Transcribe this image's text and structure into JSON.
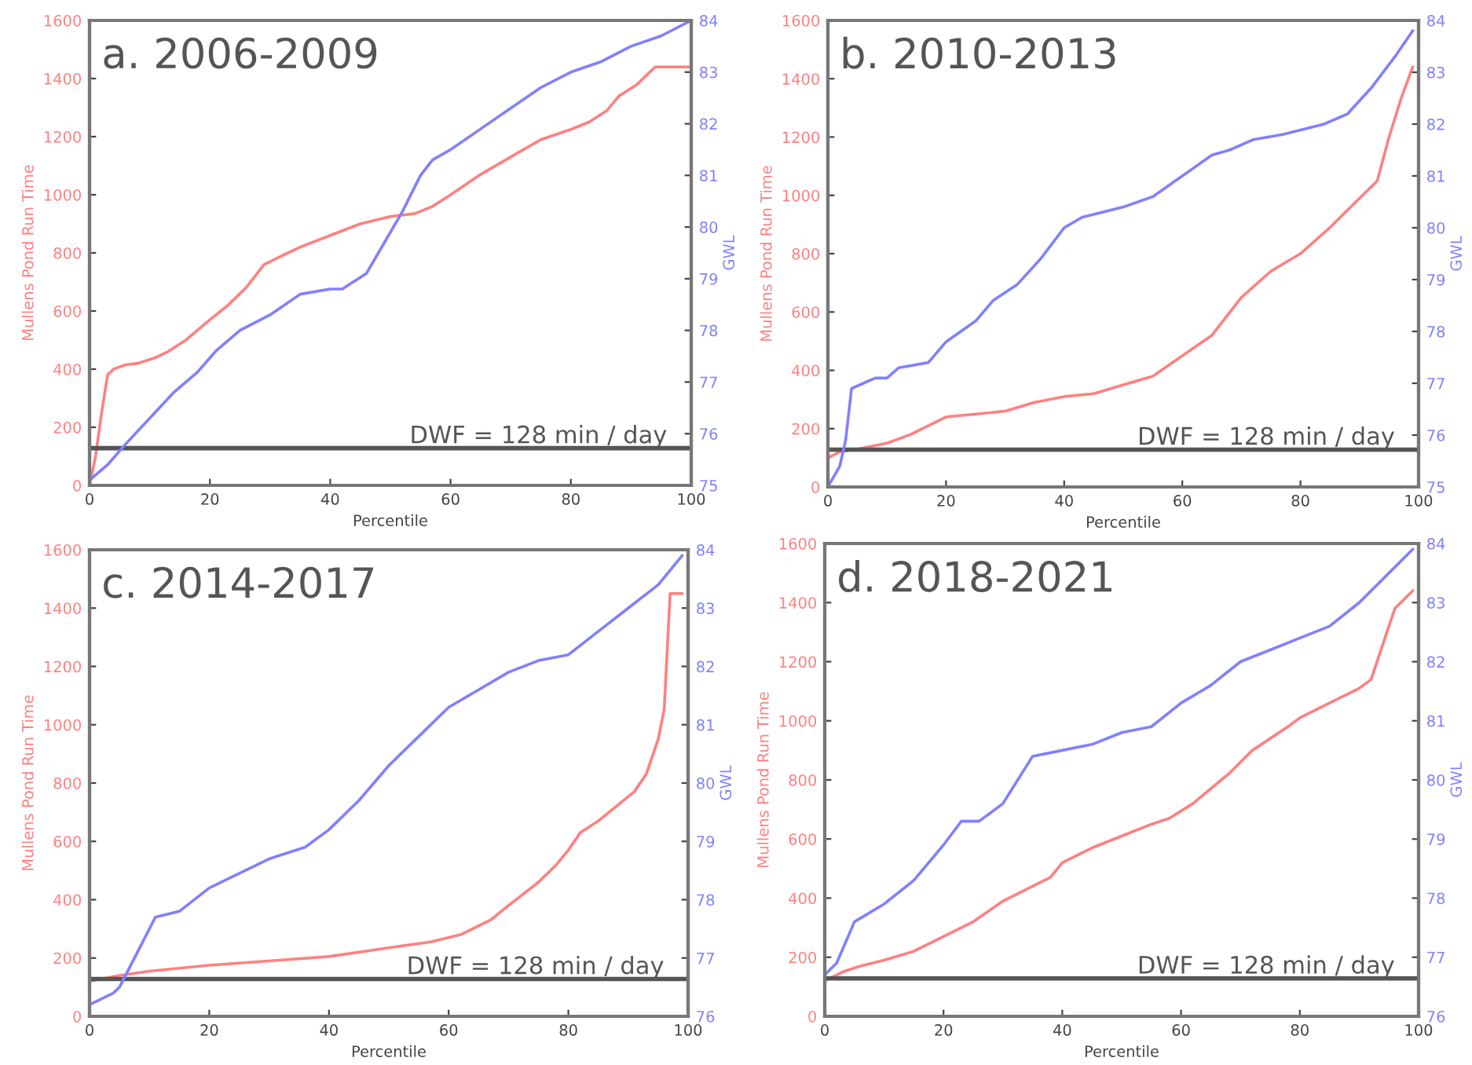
{
  "chart_data": [
    {
      "type": "line",
      "title": "a. 2006-2009",
      "xlabel": "Percentile",
      "ylabel": "Mullens Pond Run Time",
      "y2label": "GWL",
      "xlim": [
        0,
        100
      ],
      "xticks": [
        0,
        20,
        40,
        60,
        80,
        100
      ],
      "ylim": [
        0,
        1600
      ],
      "yticks": [
        0,
        200,
        400,
        600,
        800,
        1000,
        1200,
        1400,
        1600
      ],
      "y2lim": [
        75,
        84
      ],
      "y2ticks": [
        75,
        76,
        77,
        78,
        79,
        80,
        81,
        82,
        83,
        84
      ],
      "grid": false,
      "legend": false,
      "ref_lines": [
        {
          "axis": "y",
          "value": 128,
          "label": "DWF = 128 min / day",
          "color": "#555555"
        }
      ],
      "series": [
        {
          "color": "#ff8080",
          "x": [
            0,
            1,
            2,
            3,
            4,
            6,
            8,
            11,
            13,
            16,
            20,
            23,
            26,
            29,
            32,
            35,
            40,
            45,
            50,
            54,
            57,
            60,
            65,
            70,
            75,
            80,
            83,
            86,
            88,
            91,
            94,
            100
          ],
          "values": [
            0,
            100,
            250,
            380,
            400,
            415,
            420,
            440,
            460,
            500,
            570,
            620,
            680,
            760,
            790,
            820,
            860,
            900,
            925,
            935,
            960,
            1000,
            1070,
            1130,
            1190,
            1225,
            1250,
            1290,
            1340,
            1380,
            1440,
            1440
          ]
        },
        {
          "color": "#8080ff",
          "axis": "y2",
          "x": [
            0,
            3,
            6,
            10,
            14,
            18,
            21,
            25,
            30,
            35,
            40,
            42,
            46,
            48,
            52,
            55,
            57,
            60,
            65,
            70,
            75,
            80,
            85,
            90,
            95,
            100
          ],
          "values": [
            75.1,
            75.4,
            75.8,
            76.3,
            76.8,
            77.2,
            77.6,
            78.0,
            78.3,
            78.7,
            78.8,
            78.8,
            79.1,
            79.5,
            80.3,
            81.0,
            81.3,
            81.5,
            81.9,
            82.3,
            82.7,
            83.0,
            83.2,
            83.5,
            83.7,
            84.0
          ]
        }
      ]
    },
    {
      "type": "line",
      "title": "b. 2010-2013",
      "xlabel": "Percentile",
      "ylabel": "Mullens Pond Run Time",
      "y2label": "GWL",
      "xlim": [
        0,
        100
      ],
      "xticks": [
        0,
        20,
        40,
        60,
        80,
        100
      ],
      "ylim": [
        0,
        1600
      ],
      "yticks": [
        0,
        200,
        400,
        600,
        800,
        1000,
        1200,
        1400,
        1600
      ],
      "y2lim": [
        75,
        84
      ],
      "y2ticks": [
        75,
        76,
        77,
        78,
        79,
        80,
        81,
        82,
        83,
        84
      ],
      "grid": false,
      "legend": false,
      "ref_lines": [
        {
          "axis": "y",
          "value": 128,
          "label": "DWF = 128 min / day",
          "color": "#555555"
        }
      ],
      "series": [
        {
          "color": "#ff8080",
          "x": [
            0,
            2,
            5,
            10,
            14,
            18,
            20,
            25,
            30,
            35,
            40,
            45,
            50,
            55,
            60,
            65,
            70,
            75,
            80,
            85,
            90,
            93,
            95,
            97,
            99
          ],
          "values": [
            100,
            120,
            130,
            150,
            180,
            220,
            240,
            250,
            260,
            290,
            310,
            320,
            350,
            380,
            450,
            520,
            650,
            740,
            800,
            890,
            990,
            1050,
            1200,
            1330,
            1440
          ]
        },
        {
          "color": "#8080ff",
          "axis": "y2",
          "x": [
            0,
            2,
            3,
            4,
            6,
            8,
            10,
            12,
            17,
            20,
            25,
            28,
            32,
            36,
            40,
            43,
            50,
            55,
            60,
            65,
            68,
            72,
            77,
            84,
            88,
            92,
            96,
            99
          ],
          "values": [
            75.0,
            75.4,
            75.9,
            76.9,
            77.0,
            77.1,
            77.1,
            77.3,
            77.4,
            77.8,
            78.2,
            78.6,
            78.9,
            79.4,
            80.0,
            80.2,
            80.4,
            80.6,
            81.0,
            81.4,
            81.5,
            81.7,
            81.8,
            82.0,
            82.2,
            82.7,
            83.3,
            83.8
          ]
        }
      ]
    },
    {
      "type": "line",
      "title": "c. 2014-2017",
      "xlabel": "Percentile",
      "ylabel": "Mullens Pond Run Time",
      "y2label": "GWL",
      "xlim": [
        0,
        100
      ],
      "xticks": [
        0,
        20,
        40,
        60,
        80,
        100
      ],
      "ylim": [
        0,
        1600
      ],
      "yticks": [
        0,
        200,
        400,
        600,
        800,
        1000,
        1200,
        1400,
        1600
      ],
      "y2lim": [
        76,
        84
      ],
      "y2ticks": [
        76,
        77,
        78,
        79,
        80,
        81,
        82,
        83,
        84
      ],
      "grid": false,
      "legend": false,
      "ref_lines": [
        {
          "axis": "y",
          "value": 128,
          "label": "DWF = 128 min / day",
          "color": "#555555"
        }
      ],
      "series": [
        {
          "color": "#ff8080",
          "x": [
            0,
            5,
            10,
            20,
            30,
            40,
            50,
            57,
            62,
            67,
            70,
            75,
            78,
            80,
            82,
            85,
            88,
            91,
            93,
            95,
            96,
            97,
            99
          ],
          "values": [
            120,
            140,
            155,
            175,
            190,
            205,
            235,
            255,
            280,
            330,
            380,
            460,
            520,
            570,
            630,
            670,
            720,
            770,
            830,
            950,
            1050,
            1450,
            1450
          ]
        },
        {
          "color": "#8080ff",
          "axis": "y2",
          "x": [
            0,
            4,
            5,
            8,
            11,
            15,
            20,
            22,
            30,
            36,
            40,
            45,
            50,
            55,
            60,
            65,
            70,
            75,
            80,
            85,
            90,
            95,
            99
          ],
          "values": [
            76.2,
            76.4,
            76.5,
            77.1,
            77.7,
            77.8,
            78.2,
            78.3,
            78.7,
            78.9,
            79.2,
            79.7,
            80.3,
            80.8,
            81.3,
            81.6,
            81.9,
            82.1,
            82.2,
            82.6,
            83.0,
            83.4,
            83.9
          ]
        }
      ]
    },
    {
      "type": "line",
      "title": "d. 2018-2021",
      "xlabel": "Percentile",
      "ylabel": "Mullens Pond Run Time",
      "y2label": "GWL",
      "xlim": [
        0,
        100
      ],
      "xticks": [
        0,
        20,
        40,
        60,
        80,
        100
      ],
      "ylim": [
        0,
        1600
      ],
      "yticks": [
        0,
        200,
        400,
        600,
        800,
        1000,
        1200,
        1400,
        1600
      ],
      "y2lim": [
        76,
        84
      ],
      "y2ticks": [
        76,
        77,
        78,
        79,
        80,
        81,
        82,
        83,
        84
      ],
      "grid": false,
      "legend": false,
      "ref_lines": [
        {
          "axis": "y",
          "value": 128,
          "label": "DWF = 128 min / day",
          "color": "#555555"
        }
      ],
      "series": [
        {
          "color": "#ff8080",
          "x": [
            0,
            3,
            6,
            10,
            15,
            20,
            25,
            30,
            35,
            38,
            40,
            45,
            50,
            55,
            58,
            62,
            68,
            72,
            78,
            80,
            85,
            90,
            92,
            94,
            96,
            99
          ],
          "values": [
            120,
            150,
            170,
            190,
            220,
            270,
            320,
            390,
            440,
            470,
            520,
            570,
            610,
            650,
            670,
            720,
            820,
            900,
            980,
            1010,
            1060,
            1110,
            1140,
            1260,
            1380,
            1440
          ]
        },
        {
          "color": "#8080ff",
          "axis": "y2",
          "x": [
            0,
            2,
            5,
            10,
            15,
            20,
            23,
            26,
            30,
            35,
            40,
            45,
            50,
            55,
            60,
            65,
            70,
            75,
            80,
            85,
            90,
            95,
            99
          ],
          "values": [
            76.7,
            76.9,
            77.6,
            77.9,
            78.3,
            78.9,
            79.3,
            79.3,
            79.6,
            80.4,
            80.5,
            80.6,
            80.8,
            80.9,
            81.3,
            81.6,
            82.0,
            82.2,
            82.4,
            82.6,
            83.0,
            83.5,
            83.9
          ]
        }
      ]
    }
  ]
}
